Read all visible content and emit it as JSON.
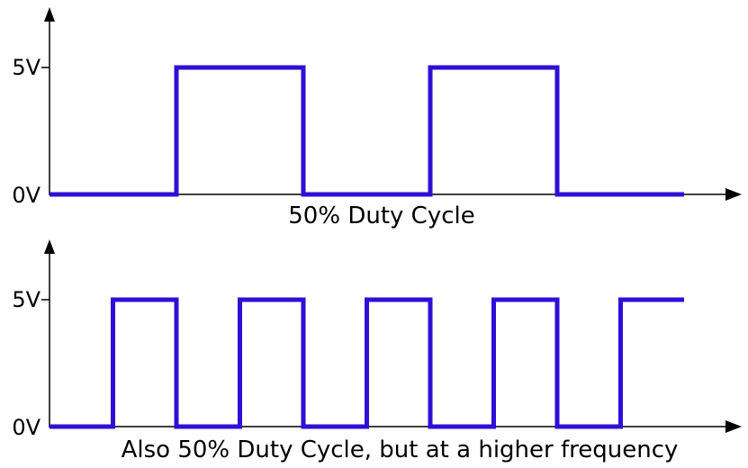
{
  "colors": {
    "signal": "#2e0fd6",
    "axis": "#000000",
    "background": "#ffffff"
  },
  "chart_data": [
    {
      "type": "line",
      "title": "50% Duty Cycle",
      "y_ticks": [
        "0V",
        "5V"
      ],
      "series": [
        {
          "duty_cycle": 0.5,
          "levels": [
            0,
            5,
            0,
            5,
            0
          ],
          "segment_durations": [
            2,
            2,
            2,
            2,
            2
          ]
        }
      ]
    },
    {
      "type": "line",
      "title": "Also 50% Duty Cycle, but at a higher frequency",
      "y_ticks": [
        "0V",
        "5V"
      ],
      "series": [
        {
          "duty_cycle": 0.5,
          "levels": [
            0,
            5,
            0,
            5,
            0,
            5,
            0,
            5,
            0,
            5
          ],
          "segment_durations": [
            1,
            1,
            1,
            1,
            1,
            1,
            1,
            1,
            1,
            1
          ]
        }
      ]
    }
  ]
}
